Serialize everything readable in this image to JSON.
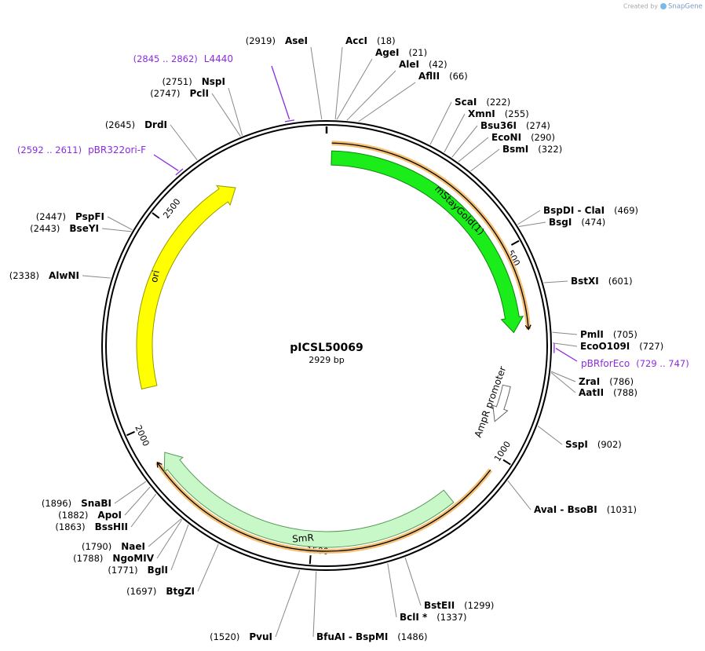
{
  "header": {
    "credit": "Created by",
    "brand": "SnapGene"
  },
  "plasmid": {
    "name": "pICSL50069",
    "length": {
      "value": 2929,
      "label": "2929 bp"
    }
  },
  "ticks": [
    500,
    1000,
    1500,
    2000,
    2500
  ],
  "features": [
    {
      "label": "mStayGold(1)"
    },
    {
      "label": "AmpR promoter"
    },
    {
      "label": "SmR"
    },
    {
      "label": "ori"
    }
  ],
  "primers": [
    {
      "name": "L4440",
      "range": "(2845 .. 2862)"
    },
    {
      "name": "pBR322ori-F",
      "range": "(2592 .. 2611)"
    },
    {
      "name": "pBRforEco",
      "range": "(729 .. 747)"
    }
  ],
  "sites": [
    {
      "name": "AccI",
      "position": {
        "value": 18,
        "label": "(18)"
      }
    },
    {
      "name": "AgeI",
      "position": {
        "value": 21,
        "label": "(21)"
      }
    },
    {
      "name": "AleI",
      "position": {
        "value": 42,
        "label": "(42)"
      }
    },
    {
      "name": "AflII",
      "position": {
        "value": 66,
        "label": "(66)"
      }
    },
    {
      "name": "ScaI",
      "position": {
        "value": 222,
        "label": "(222)"
      }
    },
    {
      "name": "XmnI",
      "position": {
        "value": 255,
        "label": "(255)"
      }
    },
    {
      "name": "Bsu36I",
      "position": {
        "value": 274,
        "label": "(274)"
      }
    },
    {
      "name": "EcoNI",
      "position": {
        "value": 290,
        "label": "(290)"
      }
    },
    {
      "name": "BsmI",
      "position": {
        "value": 322,
        "label": "(322)"
      }
    },
    {
      "name": "BspDI - ClaI",
      "position": {
        "value": 469,
        "label": "(469)"
      }
    },
    {
      "name": "BsgI",
      "position": {
        "value": 474,
        "label": "(474)"
      }
    },
    {
      "name": "BstXI",
      "position": {
        "value": 601,
        "label": "(601)"
      }
    },
    {
      "name": "PmlI",
      "position": {
        "value": 705,
        "label": "(705)"
      }
    },
    {
      "name": "EcoO109I",
      "position": {
        "value": 727,
        "label": "(727)"
      }
    },
    {
      "name": "ZraI",
      "position": {
        "value": 786,
        "label": "(786)"
      }
    },
    {
      "name": "AatII",
      "position": {
        "value": 788,
        "label": "(788)"
      }
    },
    {
      "name": "SspI",
      "position": {
        "value": 902,
        "label": "(902)"
      }
    },
    {
      "name": "AvaI - BsoBI",
      "position": {
        "value": 1031,
        "label": "(1031)"
      }
    },
    {
      "name": "BstEII",
      "position": {
        "value": 1299,
        "label": "(1299)"
      }
    },
    {
      "name": "BclI *",
      "position": {
        "value": 1337,
        "label": "(1337)"
      }
    },
    {
      "name": "BfuAI - BspMI",
      "position": {
        "value": 1486,
        "label": "(1486)"
      }
    },
    {
      "name": "PvuI",
      "position": {
        "value": 1520,
        "label": "(1520)"
      }
    },
    {
      "name": "BtgZI",
      "position": {
        "value": 1697,
        "label": "(1697)"
      }
    },
    {
      "name": "BglI",
      "position": {
        "value": 1771,
        "label": "(1771)"
      }
    },
    {
      "name": "NgoMIV",
      "position": {
        "value": 1788,
        "label": "(1788)"
      }
    },
    {
      "name": "NaeI",
      "position": {
        "value": 1790,
        "label": "(1790)"
      }
    },
    {
      "name": "BssHII",
      "position": {
        "value": 1863,
        "label": "(1863)"
      }
    },
    {
      "name": "ApoI",
      "position": {
        "value": 1882,
        "label": "(1882)"
      }
    },
    {
      "name": "SnaBI",
      "position": {
        "value": 1896,
        "label": "(1896)"
      }
    },
    {
      "name": "AlwNI",
      "position": {
        "value": 2338,
        "label": "(2338)"
      }
    },
    {
      "name": "BseYI",
      "position": {
        "value": 2443,
        "label": "(2443)"
      }
    },
    {
      "name": "PspFI",
      "position": {
        "value": 2447,
        "label": "(2447)"
      }
    },
    {
      "name": "DrdI",
      "position": {
        "value": 2645,
        "label": "(2645)"
      }
    },
    {
      "name": "PclI",
      "position": {
        "value": 2747,
        "label": "(2747)"
      }
    },
    {
      "name": "NspI",
      "position": {
        "value": 2751,
        "label": "(2751)"
      }
    },
    {
      "name": "AseI",
      "position": {
        "value": 2919,
        "label": "(2919)"
      }
    }
  ]
}
